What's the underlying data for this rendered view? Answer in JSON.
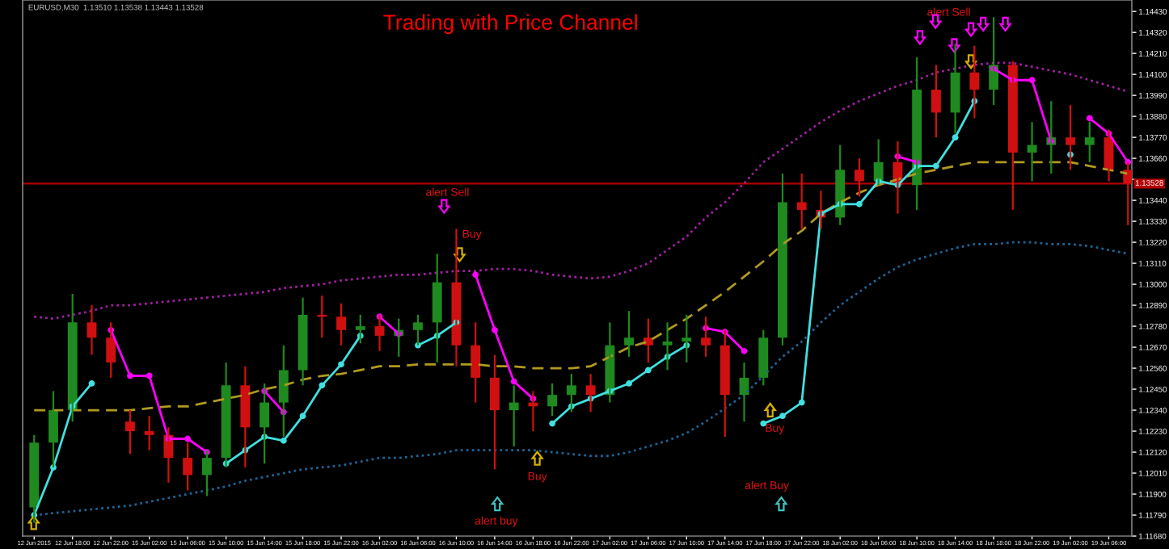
{
  "chart_data": {
    "type": "candlestick",
    "title": "Trading with Price Channel",
    "categories": [
      "12 Jun 2015",
      null,
      "12 Jun 18:00",
      null,
      "12 Jun 22:00",
      null,
      "15 Jun 02:00",
      null,
      "15 Jun 06:00",
      null,
      "15 Jun 10:00",
      null,
      "15 Jun 14:00",
      null,
      "15 Jun 18:00",
      null,
      "15 Jun 22:00",
      null,
      "16 Jun 02:00",
      null,
      "16 Jun 06:00",
      null,
      "16 Jun 10:00",
      null,
      "16 Jun 14:00",
      null,
      "16 Jun 18:00",
      null,
      "16 Jun 22:00",
      null,
      "17 Jun 02:00",
      null,
      "17 Jun 06:00",
      null,
      "17 Jun 10:00",
      null,
      "17 Jun 14:00",
      null,
      "17 Jun 18:00",
      null,
      "17 Jun 22:00",
      null,
      "18 Jun 02:00",
      null,
      "18 Jun 06:00",
      null,
      "18 Jun 10:00",
      null,
      "18 Jun 14:00",
      null,
      "18 Jun 18:00",
      null,
      "18 Jun 22:00",
      null,
      "19 Jun 02:00",
      null,
      "19 Jun 06:00",
      null
    ],
    "ohlc": [
      [
        1.1183,
        1.1221,
        1.1175,
        1.1217
      ],
      [
        1.1217,
        1.1244,
        1.1204,
        1.1234
      ],
      [
        1.1234,
        1.1295,
        1.1228,
        1.128
      ],
      [
        1.128,
        1.1289,
        1.1263,
        1.1272
      ],
      [
        1.1272,
        1.128,
        1.1251,
        1.1259
      ],
      [
        1.1228,
        1.1234,
        1.1211,
        1.1223
      ],
      [
        1.1223,
        1.1231,
        1.1213,
        1.1221
      ],
      [
        1.1221,
        1.1225,
        1.1196,
        1.1209
      ],
      [
        1.1209,
        1.1217,
        1.1192,
        1.12
      ],
      [
        1.12,
        1.1213,
        1.1189,
        1.1209
      ],
      [
        1.1209,
        1.1259,
        1.1204,
        1.1247
      ],
      [
        1.1247,
        1.1257,
        1.1204,
        1.1225
      ],
      [
        1.1225,
        1.1248,
        1.1206,
        1.1238
      ],
      [
        1.1238,
        1.1268,
        1.122,
        1.1255
      ],
      [
        1.1255,
        1.1293,
        1.1247,
        1.1284
      ],
      [
        1.1284,
        1.1294,
        1.1272,
        1.1283
      ],
      [
        1.1283,
        1.129,
        1.1268,
        1.1276
      ],
      [
        1.1276,
        1.1284,
        1.1269,
        1.1278
      ],
      [
        1.1278,
        1.1284,
        1.1265,
        1.1273
      ],
      [
        1.1273,
        1.1282,
        1.1262,
        1.1276
      ],
      [
        1.1276,
        1.1284,
        1.1268,
        1.128
      ],
      [
        1.128,
        1.1316,
        1.1259,
        1.1301
      ],
      [
        1.1301,
        1.1329,
        1.1257,
        1.1268
      ],
      [
        1.1268,
        1.128,
        1.1238,
        1.1251
      ],
      [
        1.1251,
        1.1263,
        1.1203,
        1.1234
      ],
      [
        1.1234,
        1.1247,
        1.1215,
        1.1238
      ],
      [
        1.1238,
        1.1244,
        1.1223,
        1.1236
      ],
      [
        1.1236,
        1.1248,
        1.1231,
        1.1242
      ],
      [
        1.1242,
        1.1253,
        1.1233,
        1.1247
      ],
      [
        1.1247,
        1.1253,
        1.1233,
        1.1242
      ],
      [
        1.1242,
        1.128,
        1.1238,
        1.1268
      ],
      [
        1.1268,
        1.1286,
        1.1262,
        1.1272
      ],
      [
        1.1272,
        1.1282,
        1.1259,
        1.1268
      ],
      [
        1.1268,
        1.128,
        1.1255,
        1.127
      ],
      [
        1.127,
        1.1284,
        1.1259,
        1.1272
      ],
      [
        1.1272,
        1.1283,
        1.1262,
        1.1268
      ],
      [
        1.1268,
        1.1276,
        1.122,
        1.1242
      ],
      [
        1.1242,
        1.1259,
        1.1228,
        1.1251
      ],
      [
        1.1251,
        1.1276,
        1.1247,
        1.1272
      ],
      [
        1.1272,
        1.1358,
        1.1268,
        1.1343
      ],
      [
        1.1343,
        1.1358,
        1.1329,
        1.1339
      ],
      [
        1.1339,
        1.1349,
        1.1329,
        1.1335
      ],
      [
        1.1335,
        1.1373,
        1.1331,
        1.136
      ],
      [
        1.136,
        1.1366,
        1.1346,
        1.1354
      ],
      [
        1.1354,
        1.1376,
        1.1352,
        1.1364
      ],
      [
        1.1364,
        1.1375,
        1.1337,
        1.1352
      ],
      [
        1.1352,
        1.1419,
        1.1339,
        1.1402
      ],
      [
        1.1402,
        1.1415,
        1.1377,
        1.139
      ],
      [
        1.139,
        1.1426,
        1.1379,
        1.1411
      ],
      [
        1.1411,
        1.1425,
        1.1387,
        1.1402
      ],
      [
        1.1402,
        1.144,
        1.1394,
        1.1415
      ],
      [
        1.1415,
        1.1417,
        1.1339,
        1.1369
      ],
      [
        1.1369,
        1.1385,
        1.1354,
        1.1373
      ],
      [
        1.1373,
        1.1396,
        1.1358,
        1.1377
      ],
      [
        1.1377,
        1.1394,
        1.136,
        1.1373
      ],
      [
        1.1373,
        1.1385,
        1.1364,
        1.1377
      ],
      [
        1.1377,
        1.1381,
        1.1354,
        1.136
      ],
      [
        1.136,
        1.1364,
        1.1331,
        1.13528
      ]
    ],
    "series": [
      {
        "type": "line",
        "color": "#a020a0",
        "line_style": "dotted",
        "values": [
          1.1283,
          1.1282,
          1.1284,
          1.1286,
          1.1289,
          1.1289,
          1.129,
          1.1291,
          1.1292,
          1.1293,
          1.1294,
          1.1295,
          1.1296,
          1.1298,
          1.1299,
          1.13,
          1.1302,
          1.1303,
          1.1304,
          1.1305,
          1.1305,
          1.1306,
          1.1307,
          1.1307,
          1.1308,
          1.1308,
          1.1307,
          1.1305,
          1.1304,
          1.1303,
          1.1304,
          1.1307,
          1.1311,
          1.1318,
          1.1325,
          1.1335,
          1.1343,
          1.1353,
          1.1364,
          1.1371,
          1.1378,
          1.1385,
          1.1391,
          1.1396,
          1.14,
          1.1404,
          1.1407,
          1.1411,
          1.1413,
          1.1415,
          1.1416,
          1.1416,
          1.1414,
          1.1412,
          1.141,
          1.1407,
          1.1404,
          1.1401
        ]
      },
      {
        "type": "line",
        "color": "#b09a20",
        "line_style": "dashed",
        "values": [
          1.1234,
          1.1234,
          1.1234,
          1.1234,
          1.1234,
          1.1234,
          1.1235,
          1.1236,
          1.1236,
          1.1238,
          1.124,
          1.1242,
          1.1245,
          1.1247,
          1.125,
          1.1252,
          1.1253,
          1.1255,
          1.1257,
          1.1257,
          1.1258,
          1.1258,
          1.1258,
          1.1258,
          1.1257,
          1.1257,
          1.1256,
          1.1256,
          1.1256,
          1.1257,
          1.1262,
          1.1267,
          1.127,
          1.1276,
          1.1282,
          1.1289,
          1.1296,
          1.1304,
          1.1312,
          1.1321,
          1.1328,
          1.1337,
          1.1343,
          1.1348,
          1.1352,
          1.1355,
          1.1358,
          1.136,
          1.1362,
          1.1364,
          1.1364,
          1.1364,
          1.1364,
          1.1364,
          1.1364,
          1.1362,
          1.136,
          1.1358
        ]
      },
      {
        "type": "line",
        "color": "#1e6496",
        "line_style": "dotted",
        "values": [
          1.1179,
          1.118,
          1.1181,
          1.1182,
          1.1183,
          1.1184,
          1.1186,
          1.1188,
          1.119,
          1.1192,
          1.1194,
          1.1197,
          1.1199,
          1.1201,
          1.1203,
          1.1204,
          1.1205,
          1.1207,
          1.1209,
          1.1209,
          1.121,
          1.1211,
          1.1213,
          1.1213,
          1.1213,
          1.1213,
          1.1213,
          1.1212,
          1.1211,
          1.121,
          1.121,
          1.1212,
          1.1215,
          1.1218,
          1.1222,
          1.1228,
          1.1235,
          1.1242,
          1.1252,
          1.1262,
          1.127,
          1.128,
          1.1289,
          1.1296,
          1.1303,
          1.1309,
          1.1313,
          1.1316,
          1.1319,
          1.1321,
          1.1321,
          1.1322,
          1.1322,
          1.1321,
          1.1321,
          1.132,
          1.1318,
          1.1316
        ]
      },
      {
        "type": "line",
        "color": "#40e0e0",
        "line_style": "solid",
        "marker": "circle",
        "values": [
          1.1179,
          1.1204,
          1.1236,
          1.1248,
          null,
          null,
          null,
          null,
          null,
          null,
          1.1206,
          1.1213,
          1.122,
          1.1218,
          1.1231,
          1.1247,
          1.1258,
          1.1273,
          null,
          null,
          1.1268,
          1.1273,
          1.128,
          null,
          null,
          null,
          null,
          1.1227,
          1.1236,
          1.124,
          1.1244,
          1.1248,
          1.1255,
          1.1262,
          1.1268,
          null,
          null,
          null,
          1.1227,
          1.1231,
          1.1238,
          1.1337,
          1.1342,
          1.1342,
          1.1354,
          1.1352,
          1.1362,
          1.1362,
          1.1377,
          1.1396,
          null,
          null,
          null,
          null,
          1.1368,
          null,
          null,
          null
        ]
      },
      {
        "type": "line",
        "color": "#ff00ff",
        "line_style": "solid",
        "marker": "circle",
        "values": [
          null,
          null,
          null,
          null,
          1.1276,
          1.1252,
          1.1252,
          1.1219,
          1.1219,
          1.1212,
          null,
          null,
          1.1244,
          1.1233,
          null,
          null,
          null,
          null,
          1.1283,
          1.1274,
          null,
          null,
          null,
          1.1305,
          1.1276,
          1.1249,
          1.124,
          null,
          null,
          null,
          null,
          null,
          null,
          null,
          null,
          1.1277,
          1.1275,
          1.1265,
          null,
          null,
          null,
          null,
          null,
          null,
          null,
          1.1367,
          1.1364,
          null,
          null,
          null,
          1.1413,
          1.1407,
          1.1407,
          1.1375,
          null,
          1.1387,
          1.1379,
          1.1364
        ]
      }
    ],
    "ylim": [
      1.1168,
      1.1449
    ],
    "yticks": [
      {
        "value": 1.1168,
        "label": "1.11680"
      },
      {
        "value": 1.1179,
        "label": "1.11790"
      },
      {
        "value": 1.119,
        "label": "1.11900"
      },
      {
        "value": 1.1201,
        "label": "1.12010"
      },
      {
        "value": 1.1212,
        "label": "1.12120"
      },
      {
        "value": 1.1223,
        "label": "1.12230"
      },
      {
        "value": 1.1234,
        "label": "1.12340"
      },
      {
        "value": 1.1245,
        "label": "1.12450"
      },
      {
        "value": 1.1256,
        "label": "1.12560"
      },
      {
        "value": 1.1267,
        "label": "1.12670"
      },
      {
        "value": 1.1278,
        "label": "1.12780"
      },
      {
        "value": 1.1289,
        "label": "1.12890"
      },
      {
        "value": 1.13,
        "label": "1.13000"
      },
      {
        "value": 1.1311,
        "label": "1.13110"
      },
      {
        "value": 1.1322,
        "label": "1.13220"
      },
      {
        "value": 1.1333,
        "label": "1.13330"
      },
      {
        "value": 1.1344,
        "label": "1.13440"
      },
      {
        "value": 1.1355,
        "label": null
      },
      {
        "value": 1.1366,
        "label": "1.13660"
      },
      {
        "value": 1.1377,
        "label": "1.13770"
      },
      {
        "value": 1.1388,
        "label": "1.13880"
      },
      {
        "value": 1.1399,
        "label": "1.13990"
      },
      {
        "value": 1.141,
        "label": "1.14100"
      },
      {
        "value": 1.1421,
        "label": "1.14210"
      },
      {
        "value": 1.1432,
        "label": "1.14320"
      },
      {
        "value": 1.1443,
        "label": "1.14430"
      }
    ],
    "ref_lines": [
      {
        "axis": "y",
        "value": 1.13528,
        "label": "1.13528",
        "color": "#b00000"
      }
    ],
    "annotations": [
      "EURUSD,M30  1.13510 1.13538 1.13443 1.13528",
      "alert Sell",
      "Buy",
      "alert buy",
      "Buy",
      "Buy",
      "alert Buy",
      "alert Sell"
    ],
    "grid": false
  }
}
